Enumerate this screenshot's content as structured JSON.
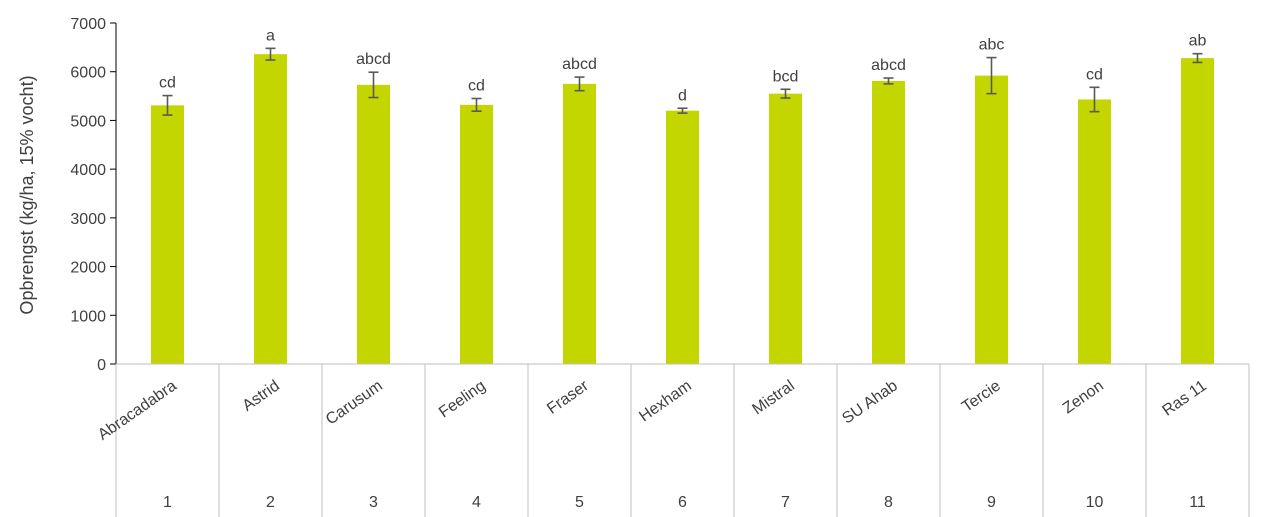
{
  "chart_data": {
    "type": "bar",
    "title": "",
    "xlabel": "",
    "ylabel": "Opbrengst (kg/ha, 15% vocht)",
    "ylim": [
      0,
      7000
    ],
    "y_ticks": [
      0,
      1000,
      2000,
      3000,
      4000,
      5000,
      6000,
      7000
    ],
    "grid": false,
    "legend": "none",
    "bar_color": "#c3d600",
    "error_bar_color": "#595959",
    "axis_color": "#bfbfbf",
    "categories": [
      "Abracadabra",
      "Astrid",
      "Carusum",
      "Feeling",
      "Fraser",
      "Hexham",
      "Mistral",
      "SU Ahab",
      "Tercie",
      "Zenon",
      "Ras 11"
    ],
    "category_numbers": [
      "1",
      "2",
      "3",
      "4",
      "5",
      "6",
      "7",
      "8",
      "9",
      "10",
      "11"
    ],
    "series": [
      {
        "values": [
          5310,
          6360,
          5730,
          5320,
          5750,
          5200,
          5550,
          5810,
          5920,
          5430,
          6280
        ],
        "error": [
          200,
          120,
          260,
          130,
          140,
          50,
          90,
          60,
          370,
          250,
          90
        ],
        "significance": [
          "cd",
          "a",
          "abcd",
          "cd",
          "abcd",
          "d",
          "bcd",
          "abcd",
          "abc",
          "cd",
          "ab"
        ]
      }
    ]
  }
}
